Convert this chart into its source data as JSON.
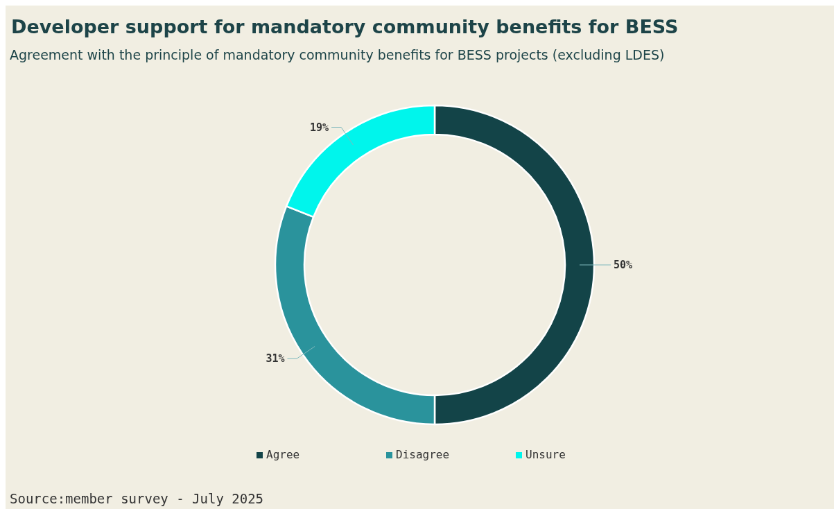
{
  "chart_data": {
    "type": "donut",
    "title": "Developer support for mandatory community benefits for BESS",
    "subtitle": "Agreement with the principle of mandatory community benefits for BESS projects (excluding LDES)",
    "categories": [
      "Agree",
      "Disagree",
      "Unsure"
    ],
    "values": [
      50,
      31,
      19
    ],
    "colors": [
      "#134448",
      "#2a939c",
      "#00f5ec"
    ],
    "value_labels": [
      "50%",
      "31%",
      "19%"
    ],
    "legend": "bottom",
    "annotations": [
      "Source:member survey - July 2025"
    ]
  }
}
